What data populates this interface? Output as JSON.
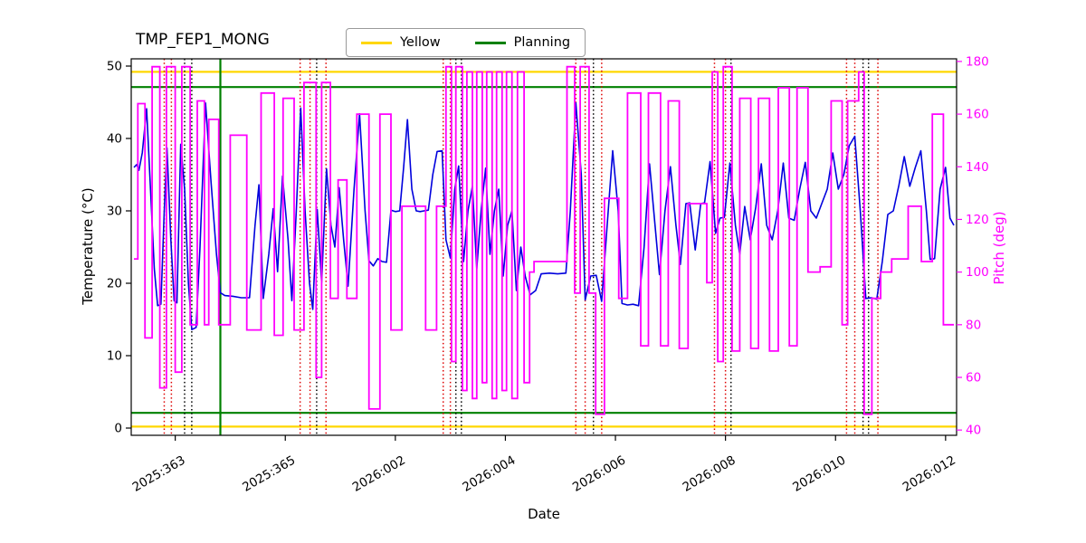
{
  "title": "TMP_FEP1_MONG",
  "legend": {
    "items": [
      {
        "label": "Yellow",
        "color": "#ffd700"
      },
      {
        "label": "Planning",
        "color": "#008000"
      }
    ]
  },
  "axes": {
    "xlabel": "Date",
    "ylabel_left": "Temperature (°C)",
    "ylabel_right": "Pitch (deg)"
  },
  "chart_data": {
    "type": "line",
    "title": "TMP_FEP1_MONG",
    "xlabel": "Date",
    "ylabel_left": "Temperature (°C)",
    "ylabel_right": "Pitch (deg)",
    "grid": false,
    "legend_position": "top-center",
    "xlim": [
      362.2,
      377.2
    ],
    "ylim_left": [
      -1,
      51
    ],
    "ylim_right": [
      38,
      181
    ],
    "xticks": [
      {
        "v": 363,
        "label": "2025:363"
      },
      {
        "v": 365,
        "label": "2025:365"
      },
      {
        "v": 367,
        "label": "2026:002"
      },
      {
        "v": 369,
        "label": "2026:004"
      },
      {
        "v": 371,
        "label": "2026:006"
      },
      {
        "v": 373,
        "label": "2026:008"
      },
      {
        "v": 375,
        "label": "2026:010"
      },
      {
        "v": 377,
        "label": "2026:012"
      }
    ],
    "yticks_left": [
      0,
      10,
      20,
      30,
      40,
      50
    ],
    "yticks_right": [
      40,
      60,
      80,
      100,
      120,
      140,
      160,
      180
    ],
    "colors": {
      "temperature": "#0000dd",
      "pitch": "#ff00ff",
      "yellow_limit": "#ffd700",
      "planning_limit": "#008000",
      "red_vline": "#dd0000",
      "black_vline": "#000000"
    },
    "hlines": [
      {
        "y": 49.2,
        "color": "#ffd700",
        "name": "yellow-upper-limit"
      },
      {
        "y": 0.2,
        "color": "#ffd700",
        "name": "yellow-lower-limit"
      },
      {
        "y": 47.1,
        "color": "#008000",
        "name": "planning-upper-limit"
      },
      {
        "y": 2.1,
        "color": "#008000",
        "name": "planning-lower-limit"
      }
    ],
    "vlines": {
      "green_solid": [
        363.82
      ],
      "red_dotted": [
        362.8,
        362.93,
        365.27,
        365.45,
        365.74,
        367.87,
        368.0,
        370.28,
        370.45,
        370.75,
        372.8,
        373.0,
        375.2,
        375.35,
        375.77
      ],
      "black_dotted": [
        363.17,
        363.3,
        365.57,
        368.1,
        368.2,
        370.6,
        373.1,
        375.5,
        375.6
      ]
    },
    "series": [
      {
        "name": "temperature",
        "axis": "left",
        "color": "#0000dd",
        "x": [
          362.25,
          362.3,
          362.34,
          362.4,
          362.48,
          362.55,
          362.62,
          362.68,
          362.74,
          362.8,
          362.85,
          362.92,
          362.98,
          363.03,
          363.1,
          363.17,
          363.24,
          363.3,
          363.38,
          363.45,
          363.55,
          363.65,
          363.75,
          363.82,
          363.9,
          364.05,
          364.2,
          364.35,
          364.45,
          364.52,
          364.6,
          364.7,
          364.78,
          364.86,
          364.95,
          365.05,
          365.12,
          365.2,
          365.28,
          365.36,
          365.44,
          365.5,
          365.58,
          365.66,
          365.75,
          365.83,
          365.9,
          365.98,
          366.06,
          366.14,
          366.25,
          366.35,
          366.45,
          366.52,
          366.6,
          366.68,
          366.76,
          366.84,
          366.92,
          367.0,
          367.08,
          367.15,
          367.22,
          367.3,
          367.38,
          367.45,
          367.52,
          367.6,
          367.68,
          367.76,
          367.85,
          367.92,
          368.0,
          368.08,
          368.15,
          368.24,
          368.32,
          368.4,
          368.48,
          368.56,
          368.64,
          368.72,
          368.8,
          368.88,
          368.96,
          369.04,
          369.12,
          369.2,
          369.28,
          369.36,
          369.45,
          369.55,
          369.65,
          369.8,
          369.95,
          370.1,
          370.18,
          370.28,
          370.38,
          370.45,
          370.55,
          370.65,
          370.75,
          370.85,
          370.95,
          371.05,
          371.12,
          371.22,
          371.32,
          371.42,
          371.52,
          371.62,
          371.72,
          371.8,
          371.9,
          372.0,
          372.1,
          372.18,
          372.28,
          372.35,
          372.45,
          372.55,
          372.62,
          372.72,
          372.82,
          372.9,
          372.98,
          373.08,
          373.18,
          373.26,
          373.35,
          373.45,
          373.55,
          373.65,
          373.75,
          373.85,
          373.95,
          374.05,
          374.15,
          374.25,
          374.35,
          374.45,
          374.55,
          374.65,
          374.75,
          374.85,
          374.95,
          375.05,
          375.15,
          375.25,
          375.35,
          375.45,
          375.55,
          375.65,
          375.75,
          375.85,
          375.95,
          376.05,
          376.15,
          376.25,
          376.35,
          376.45,
          376.55,
          376.65,
          376.72,
          376.8,
          376.9,
          377.0,
          377.08,
          377.15
        ],
        "y": [
          36.0,
          36.4,
          35.6,
          38.0,
          44.1,
          33.0,
          22.0,
          16.9,
          17.1,
          30.0,
          38.7,
          26.0,
          17.6,
          17.3,
          39.2,
          33.0,
          20.0,
          13.6,
          13.9,
          25.0,
          44.9,
          34.0,
          24.0,
          18.7,
          18.3,
          18.2,
          18.0,
          18.0,
          28.0,
          33.6,
          17.9,
          24.0,
          30.3,
          21.6,
          34.8,
          26.0,
          17.6,
          30.0,
          44.2,
          30.0,
          20.0,
          16.4,
          30.2,
          20.1,
          35.8,
          28.0,
          25.0,
          33.2,
          26.0,
          19.6,
          33.0,
          43.4,
          30.0,
          23.1,
          22.4,
          23.4,
          23.0,
          22.9,
          30.1,
          29.9,
          30.0,
          36.0,
          42.6,
          33.0,
          30.0,
          29.9,
          30.0,
          30.1,
          35.0,
          38.2,
          38.3,
          26.0,
          23.5,
          33.0,
          36.2,
          23.0,
          30.0,
          33.4,
          22.0,
          30.1,
          35.9,
          24.0,
          30.0,
          33.0,
          21.0,
          28.0,
          30.0,
          19.0,
          25.0,
          21.0,
          18.4,
          19.0,
          21.3,
          21.4,
          21.3,
          21.4,
          30.0,
          44.9,
          35.0,
          17.7,
          21.0,
          21.1,
          17.5,
          28.0,
          38.3,
          30.0,
          17.2,
          17.0,
          17.1,
          16.9,
          25.0,
          36.5,
          28.0,
          21.2,
          30.0,
          36.1,
          28.0,
          22.6,
          31.0,
          31.1,
          24.6,
          31.0,
          31.1,
          36.8,
          26.9,
          29.0,
          29.1,
          36.6,
          28.0,
          24.0,
          30.6,
          26.0,
          30.5,
          36.5,
          28.0,
          26.0,
          30.0,
          36.6,
          29.0,
          28.7,
          33.0,
          36.7,
          30.0,
          29.0,
          31.0,
          33.0,
          38.0,
          33.0,
          35.0,
          39.0,
          40.3,
          30.0,
          17.9,
          18.0,
          17.8,
          23.0,
          29.5,
          30.0,
          33.5,
          37.5,
          33.4,
          36.0,
          38.3,
          30.0,
          23.3,
          23.4,
          33.0,
          36.0,
          29.0,
          28.0
        ]
      },
      {
        "name": "pitch",
        "axis": "right",
        "color": "#ff00ff",
        "style": "steps",
        "segments": [
          [
            362.25,
            362.32,
            105
          ],
          [
            362.32,
            362.45,
            164
          ],
          [
            362.45,
            362.58,
            75
          ],
          [
            362.58,
            362.72,
            178
          ],
          [
            362.72,
            362.84,
            56
          ],
          [
            362.84,
            363.0,
            178
          ],
          [
            363.0,
            363.12,
            62
          ],
          [
            363.12,
            363.27,
            178
          ],
          [
            363.27,
            363.4,
            80
          ],
          [
            363.4,
            363.53,
            165
          ],
          [
            363.53,
            363.61,
            80
          ],
          [
            363.61,
            363.79,
            158
          ],
          [
            363.79,
            364.0,
            80
          ],
          [
            364.0,
            364.3,
            152
          ],
          [
            364.3,
            364.56,
            78
          ],
          [
            364.56,
            364.8,
            168
          ],
          [
            364.8,
            364.96,
            76
          ],
          [
            364.96,
            365.16,
            166
          ],
          [
            365.16,
            365.34,
            78
          ],
          [
            365.34,
            365.56,
            172
          ],
          [
            365.56,
            365.66,
            60
          ],
          [
            365.66,
            365.82,
            172
          ],
          [
            365.82,
            365.96,
            90
          ],
          [
            365.96,
            366.12,
            135
          ],
          [
            366.12,
            366.3,
            90
          ],
          [
            366.3,
            366.52,
            160
          ],
          [
            366.52,
            366.72,
            48
          ],
          [
            366.72,
            366.92,
            160
          ],
          [
            366.92,
            367.12,
            78
          ],
          [
            367.12,
            367.55,
            125
          ],
          [
            367.55,
            367.75,
            78
          ],
          [
            367.75,
            367.92,
            125
          ],
          [
            367.92,
            368.02,
            178
          ],
          [
            368.02,
            368.1,
            66
          ],
          [
            368.1,
            368.22,
            178
          ],
          [
            368.22,
            368.3,
            55
          ],
          [
            368.3,
            368.4,
            176
          ],
          [
            368.4,
            368.48,
            52
          ],
          [
            368.48,
            368.58,
            176
          ],
          [
            368.58,
            368.66,
            58
          ],
          [
            368.66,
            368.76,
            176
          ],
          [
            368.76,
            368.84,
            52
          ],
          [
            368.84,
            368.94,
            176
          ],
          [
            368.94,
            369.02,
            55
          ],
          [
            369.02,
            369.12,
            176
          ],
          [
            369.12,
            369.22,
            52
          ],
          [
            369.22,
            369.34,
            176
          ],
          [
            369.34,
            369.44,
            58
          ],
          [
            369.44,
            369.52,
            100
          ],
          [
            369.52,
            370.12,
            104
          ],
          [
            370.12,
            370.26,
            178
          ],
          [
            370.26,
            370.36,
            92
          ],
          [
            370.36,
            370.52,
            178
          ],
          [
            370.52,
            370.64,
            92
          ],
          [
            370.64,
            370.8,
            46
          ],
          [
            370.8,
            371.06,
            128
          ],
          [
            371.06,
            371.22,
            90
          ],
          [
            371.22,
            371.46,
            168
          ],
          [
            371.46,
            371.6,
            72
          ],
          [
            371.6,
            371.82,
            168
          ],
          [
            371.82,
            371.96,
            72
          ],
          [
            371.96,
            372.16,
            165
          ],
          [
            372.16,
            372.32,
            71
          ],
          [
            372.32,
            372.66,
            126
          ],
          [
            372.66,
            372.76,
            96
          ],
          [
            372.76,
            372.86,
            176
          ],
          [
            372.86,
            372.96,
            66
          ],
          [
            372.96,
            373.12,
            178
          ],
          [
            373.12,
            373.26,
            70
          ],
          [
            373.26,
            373.46,
            166
          ],
          [
            373.46,
            373.6,
            71
          ],
          [
            373.6,
            373.8,
            166
          ],
          [
            373.8,
            373.96,
            70
          ],
          [
            373.96,
            374.16,
            170
          ],
          [
            374.16,
            374.3,
            72
          ],
          [
            374.3,
            374.5,
            170
          ],
          [
            374.5,
            374.72,
            100
          ],
          [
            374.72,
            374.92,
            102
          ],
          [
            374.92,
            375.12,
            165
          ],
          [
            375.12,
            375.22,
            80
          ],
          [
            375.22,
            375.42,
            165
          ],
          [
            375.42,
            375.52,
            176
          ],
          [
            375.52,
            375.66,
            46
          ],
          [
            375.66,
            375.82,
            90
          ],
          [
            375.82,
            376.02,
            100
          ],
          [
            376.02,
            376.32,
            105
          ],
          [
            376.32,
            376.56,
            125
          ],
          [
            376.56,
            376.76,
            104
          ],
          [
            376.76,
            376.96,
            160
          ],
          [
            376.96,
            377.15,
            80
          ]
        ]
      }
    ]
  }
}
